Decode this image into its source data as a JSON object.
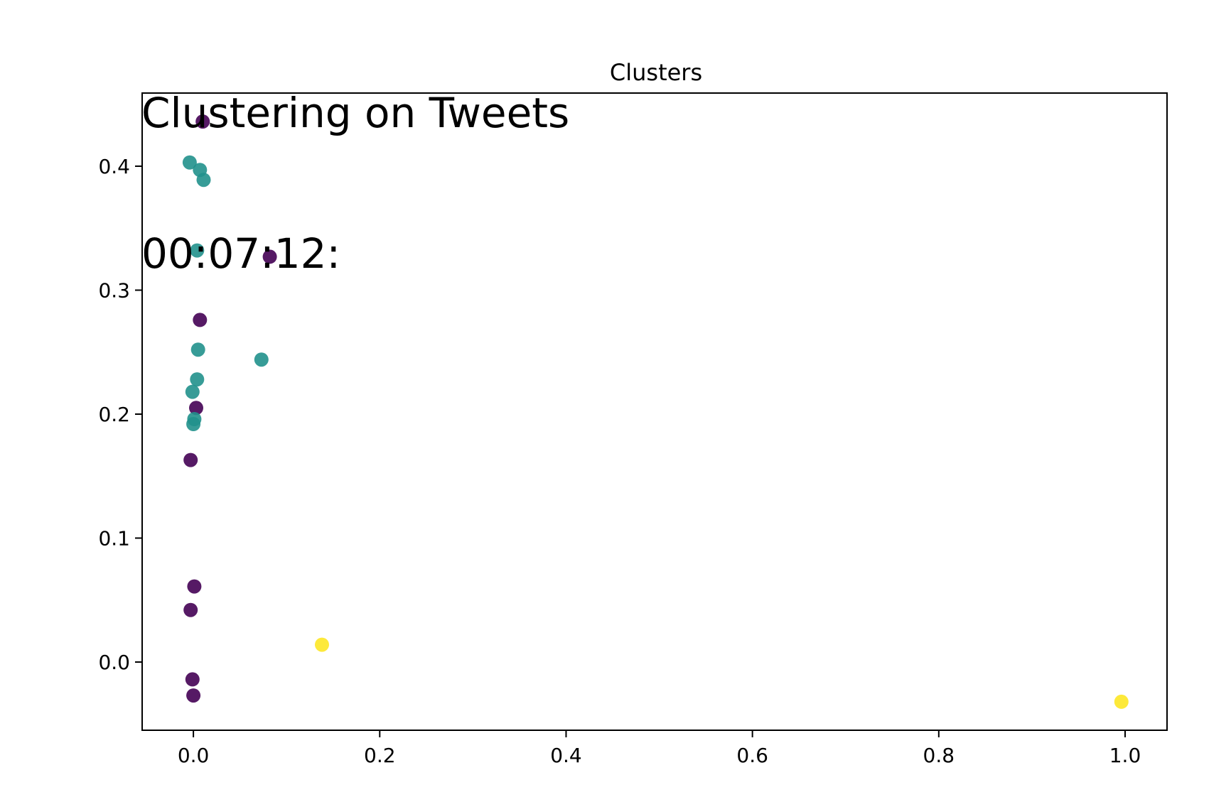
{
  "figure": {
    "suptitle_line1": "Clustering on Tweets",
    "suptitle_line2": "00:07:12:"
  },
  "chart_data": {
    "type": "scatter",
    "title": "Clusters",
    "xlabel": "",
    "ylabel": "",
    "xlim": [
      -0.055,
      1.045
    ],
    "ylim": [
      -0.055,
      0.459
    ],
    "xticks": [
      0.0,
      0.2,
      0.4,
      0.6,
      0.8,
      1.0
    ],
    "xtick_labels": [
      "0.0",
      "0.2",
      "0.4",
      "0.6",
      "0.8",
      "1.0"
    ],
    "yticks": [
      0.0,
      0.1,
      0.2,
      0.3,
      0.4
    ],
    "ytick_labels": [
      "0.0",
      "0.1",
      "0.2",
      "0.3",
      "0.4"
    ],
    "grid": false,
    "legend": false,
    "colors": [
      "#440154",
      "#21918c",
      "#fde725"
    ],
    "series": [
      {
        "color": "#440154",
        "points": [
          {
            "x": 0.01,
            "y": 0.436
          },
          {
            "x": 0.082,
            "y": 0.327
          },
          {
            "x": 0.007,
            "y": 0.276
          },
          {
            "x": 0.003,
            "y": 0.205
          },
          {
            "x": -0.003,
            "y": 0.163
          },
          {
            "x": 0.001,
            "y": 0.061
          },
          {
            "x": -0.003,
            "y": 0.042
          },
          {
            "x": -0.001,
            "y": -0.014
          },
          {
            "x": 0.0,
            "y": -0.027
          }
        ]
      },
      {
        "color": "#21918c",
        "points": [
          {
            "x": -0.004,
            "y": 0.403
          },
          {
            "x": 0.007,
            "y": 0.397
          },
          {
            "x": 0.011,
            "y": 0.389
          },
          {
            "x": 0.004,
            "y": 0.332
          },
          {
            "x": 0.005,
            "y": 0.252
          },
          {
            "x": 0.073,
            "y": 0.244
          },
          {
            "x": 0.004,
            "y": 0.228
          },
          {
            "x": -0.001,
            "y": 0.218
          },
          {
            "x": 0.001,
            "y": 0.196
          },
          {
            "x": 0.0,
            "y": 0.192
          }
        ]
      },
      {
        "color": "#fde725",
        "points": [
          {
            "x": 0.138,
            "y": 0.014
          },
          {
            "x": 0.996,
            "y": -0.032
          }
        ]
      }
    ]
  }
}
